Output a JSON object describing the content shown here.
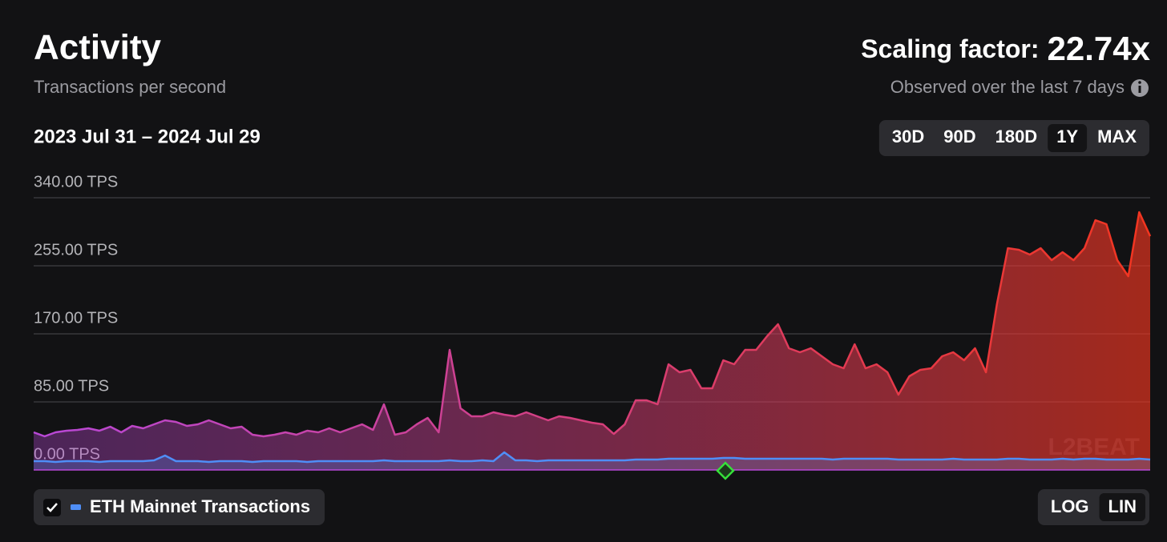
{
  "chart_data": {
    "type": "area",
    "title": "Activity",
    "subtitle": "Transactions per second",
    "scaling_factor_label": "Scaling factor:",
    "scaling_factor": "22.74x",
    "note": "Observed over the last 7 days",
    "date_range": "2023 Jul 31 – 2024 Jul 29",
    "range_buttons": [
      "30D",
      "90D",
      "180D",
      "1Y",
      "MAX"
    ],
    "selected_range": "1Y",
    "scale_buttons": [
      "LOG",
      "LIN"
    ],
    "log_scale": false,
    "watermark": "L2BEAT",
    "grid": true,
    "ylim": [
      0,
      340
    ],
    "yticks": [
      {
        "value": 0,
        "label": "0.00 TPS"
      },
      {
        "value": 85,
        "label": "85.00 TPS"
      },
      {
        "value": 170,
        "label": "170.00 TPS"
      },
      {
        "value": 255,
        "label": "255.00 TPS"
      },
      {
        "value": 340,
        "label": "340.00 TPS"
      }
    ],
    "series": [
      {
        "color": "#b848d8",
        "color_end": "#f2351f",
        "values": [
          47,
          42,
          47,
          49,
          50,
          52,
          49,
          54,
          47,
          55,
          52,
          57,
          62,
          60,
          55,
          57,
          62,
          57,
          52,
          54,
          44,
          42,
          44,
          47,
          44,
          49,
          47,
          52,
          47,
          52,
          57,
          50,
          82,
          44,
          47,
          57,
          65,
          47,
          150,
          77,
          67,
          67,
          72,
          69,
          67,
          72,
          67,
          62,
          67,
          65,
          62,
          59,
          57,
          45,
          57,
          87,
          87,
          82,
          132,
          122,
          125,
          102,
          102,
          137,
          132,
          150,
          150,
          167,
          182,
          152,
          147,
          152,
          142,
          132,
          127,
          157,
          127,
          132,
          122,
          94,
          117,
          125,
          127,
          142,
          147,
          137,
          152,
          122,
          207,
          277,
          275,
          269,
          277,
          262,
          272,
          262,
          277,
          312,
          307,
          262,
          242,
          322,
          292
        ]
      },
      {
        "name": "ETH Mainnet Transactions",
        "color": "#4f8ef7",
        "values": [
          11,
          11,
          10,
          11,
          11,
          11,
          10,
          11,
          11,
          11,
          11,
          12,
          18,
          11,
          11,
          11,
          10,
          11,
          11,
          11,
          10,
          11,
          11,
          11,
          11,
          10,
          11,
          11,
          11,
          11,
          11,
          11,
          12,
          11,
          11,
          11,
          11,
          11,
          12,
          11,
          11,
          12,
          11,
          22,
          12,
          12,
          11,
          12,
          12,
          12,
          12,
          12,
          12,
          12,
          12,
          13,
          13,
          13,
          14,
          14,
          14,
          14,
          14,
          15,
          15,
          14,
          14,
          14,
          14,
          14,
          14,
          14,
          14,
          13,
          14,
          14,
          14,
          14,
          14,
          13,
          13,
          13,
          13,
          13,
          14,
          13,
          13,
          13,
          13,
          14,
          14,
          13,
          13,
          13,
          14,
          13,
          14,
          14,
          13,
          13,
          13,
          14,
          13
        ]
      }
    ]
  }
}
